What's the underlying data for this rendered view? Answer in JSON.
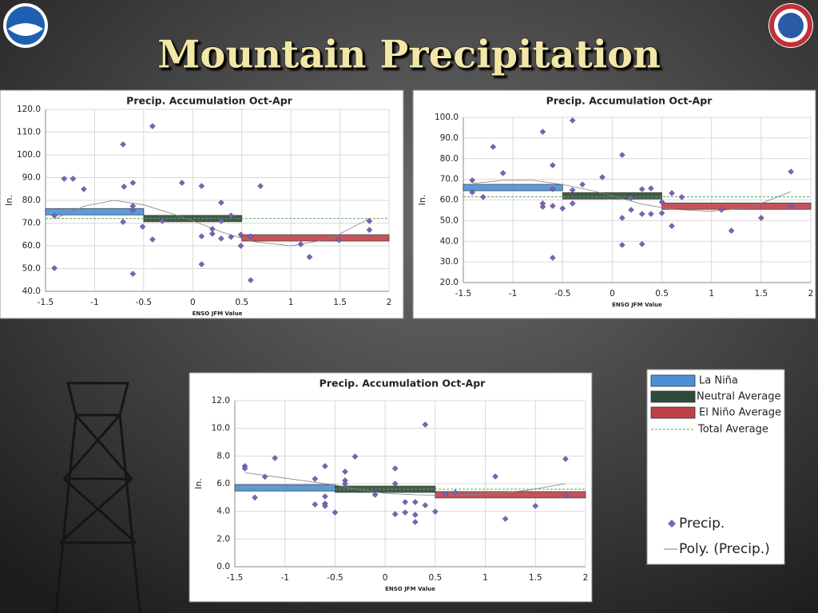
{
  "title": "Mountain Precipitation",
  "legend": {
    "items": [
      {
        "name": "La Niña",
        "color": "#4a90d9"
      },
      {
        "name": "Neutral Average",
        "color": "#2e4a38"
      },
      {
        "name": "El Niño Average",
        "color": "#c0404a"
      },
      {
        "name": "Total Average",
        "color": "#55aa55"
      },
      {
        "name": "Precip.",
        "color": "#7a64b4"
      },
      {
        "name": "Poly. (Precip.)",
        "color": "#808080"
      }
    ]
  },
  "chart_data": [
    {
      "type": "scatter",
      "title": "Precip. Accumulation Oct-Apr",
      "y_label": "In.",
      "x_label": "ENSO JFM Value",
      "grid": true,
      "xlim": [
        -1.5,
        2
      ],
      "xticks": [
        -1.5,
        -1,
        -0.5,
        0,
        0.5,
        1,
        1.5,
        2
      ],
      "ylim": [
        40,
        120
      ],
      "yticks": [
        {
          "value": 40,
          "label": "40.0"
        },
        {
          "value": 50,
          "label": "50.0"
        },
        {
          "value": 60,
          "label": "60.0"
        },
        {
          "value": 70,
          "label": "70.0"
        },
        {
          "value": 80,
          "label": "80.0"
        },
        {
          "value": 90,
          "label": "90.0"
        },
        {
          "value": 100,
          "label": "100.0"
        },
        {
          "value": 110,
          "label": "110.0"
        },
        {
          "value": 120,
          "label": "120.0"
        }
      ],
      "x": [
        -1.41,
        -1.41,
        -1.31,
        -1.22,
        -1.11,
        -0.71,
        -0.7,
        -0.71,
        -0.61,
        -0.61,
        -0.61,
        -0.61,
        -0.51,
        -0.41,
        -0.41,
        -0.31,
        -0.11,
        0.09,
        0.09,
        0.09,
        0.2,
        0.2,
        0.29,
        0.29,
        0.29,
        0.39,
        0.39,
        0.49,
        0.49,
        0.59,
        0.59,
        0.69,
        1.1,
        1.19,
        1.49,
        1.8,
        1.8
      ],
      "values": [
        73.3,
        50.2,
        89.5,
        89.5,
        84.9,
        104.6,
        86.0,
        70.5,
        87.7,
        77.5,
        75.8,
        47.7,
        68.4,
        112.6,
        62.8,
        70.9,
        87.7,
        86.3,
        64.2,
        51.9,
        67.4,
        65.3,
        79.0,
        70.9,
        63.2,
        73.3,
        63.9,
        64.9,
        60.0,
        64.2,
        44.9,
        86.3,
        60.7,
        55.1,
        62.5,
        70.9,
        67.0
      ],
      "averages": [
        {
          "x": [
            -1.5,
            -0.5
          ],
          "value": 75
        },
        {
          "x": [
            -0.5,
            0.5
          ],
          "value": 72
        },
        {
          "x": [
            0.5,
            2
          ],
          "value": 63.5
        }
      ],
      "total_average": 72,
      "trend": {
        "x": [
          -1.4,
          -1.1,
          -0.8,
          -0.5,
          -0.2,
          0,
          0.3,
          0.6,
          1.0,
          1.4,
          1.8
        ],
        "values": [
          72,
          77.5,
          80,
          78,
          74,
          71,
          66,
          62,
          60,
          63,
          72
        ]
      }
    },
    {
      "type": "scatter",
      "title": "Precip. Accumulation Oct-Apr",
      "y_label": "In.",
      "x_label": "ENSO JFM Value",
      "grid": true,
      "xlim": [
        -1.5,
        2
      ],
      "xticks": [
        -1.5,
        -1,
        -0.5,
        0,
        0.5,
        1,
        1.5,
        2
      ],
      "ylim": [
        20,
        100
      ],
      "yticks": [
        {
          "value": 20,
          "label": "20.0"
        },
        {
          "value": 30,
          "label": "30.0"
        },
        {
          "value": 40,
          "label": "40.0"
        },
        {
          "value": 50,
          "label": "50.0"
        },
        {
          "value": 60,
          "label": "60.0"
        },
        {
          "value": 70,
          "label": "70.0"
        },
        {
          "value": 80,
          "label": "80.0"
        },
        {
          "value": 90,
          "label": "90.0"
        },
        {
          "value": 100,
          "label": "100.0"
        }
      ],
      "x": [
        -1.41,
        -1.41,
        -1.3,
        -1.2,
        -1.1,
        -0.7,
        -0.7,
        -0.7,
        -0.6,
        -0.6,
        -0.6,
        -0.6,
        -0.5,
        -0.4,
        -0.4,
        -0.4,
        -0.3,
        -0.1,
        0.1,
        0.1,
        0.1,
        0.19,
        0.19,
        0.3,
        0.3,
        0.3,
        0.39,
        0.39,
        0.5,
        0.5,
        0.6,
        0.6,
        0.7,
        1.1,
        1.2,
        1.5,
        1.8,
        1.8
      ],
      "values": [
        69.5,
        63.7,
        61.4,
        85.7,
        73.0,
        93.0,
        58.3,
        56.7,
        76.8,
        65.2,
        57.1,
        32.0,
        55.9,
        98.5,
        64.8,
        58.3,
        67.5,
        71.0,
        81.8,
        51.3,
        38.2,
        61.0,
        55.2,
        65.2,
        53.2,
        38.6,
        65.6,
        53.2,
        59.0,
        53.6,
        63.3,
        47.4,
        61.4,
        55.2,
        45.1,
        51.3,
        73.7,
        56.7
      ],
      "averages": [
        {
          "x": [
            -1.5,
            -0.5
          ],
          "value": 66
        },
        {
          "x": [
            -0.5,
            0.5
          ],
          "value": 62
        },
        {
          "x": [
            0.5,
            2
          ],
          "value": 57
        }
      ],
      "total_average": 61.5,
      "trend": {
        "x": [
          -1.4,
          -1.1,
          -0.8,
          -0.5,
          -0.2,
          0,
          0.3,
          0.6,
          1.0,
          1.4,
          1.8
        ],
        "values": [
          68,
          69.5,
          69.5,
          67.5,
          64.5,
          62,
          58,
          55.5,
          54.5,
          56.5,
          64
        ]
      }
    },
    {
      "type": "scatter",
      "title": "Precip. Accumulation Oct-Apr",
      "y_label": "In.",
      "x_label": "ENSO JFM Value",
      "grid": true,
      "xlim": [
        -1.5,
        2
      ],
      "xticks": [
        -1.5,
        -1,
        -0.5,
        0,
        0.5,
        1,
        1.5,
        2
      ],
      "ylim": [
        0,
        12
      ],
      "yticks": [
        {
          "value": 0,
          "label": "0.0"
        },
        {
          "value": 2,
          "label": "2.0"
        },
        {
          "value": 4,
          "label": "4.0"
        },
        {
          "value": 6,
          "label": "6.0"
        },
        {
          "value": 8,
          "label": "8.0"
        },
        {
          "value": 10,
          "label": "10.0"
        },
        {
          "value": 12,
          "label": "12.0"
        }
      ],
      "x": [
        -1.4,
        -1.4,
        -1.3,
        -1.2,
        -1.1,
        -0.7,
        -0.7,
        -0.6,
        -0.6,
        -0.6,
        -0.6,
        -0.5,
        -0.4,
        -0.4,
        -0.4,
        -0.3,
        -0.1,
        0.1,
        0.1,
        0.1,
        0.2,
        0.2,
        0.3,
        0.3,
        0.3,
        0.4,
        0.4,
        0.5,
        0.6,
        0.7,
        1.1,
        1.2,
        1.5,
        1.8,
        1.8
      ],
      "values": [
        7.27,
        7.1,
        5.0,
        6.5,
        7.85,
        6.35,
        4.5,
        7.27,
        5.08,
        4.56,
        4.39,
        3.92,
        6.87,
        6.23,
        6.0,
        7.96,
        5.2,
        7.1,
        6.0,
        3.8,
        4.67,
        3.92,
        4.67,
        3.75,
        3.23,
        10.27,
        4.44,
        3.98,
        5.25,
        5.37,
        6.52,
        3.46,
        4.39,
        7.79,
        5.14
      ],
      "averages": [
        {
          "x": [
            -1.5,
            -0.5
          ],
          "value": 5.7
        },
        {
          "x": [
            -0.5,
            0.5
          ],
          "value": 5.6
        },
        {
          "x": [
            0.5,
            2
          ],
          "value": 5.2
        }
      ],
      "total_average": 5.6,
      "trend": {
        "x": [
          -1.4,
          -1.1,
          -0.8,
          -0.5,
          -0.2,
          0,
          0.3,
          0.6,
          1.0,
          1.4,
          1.8
        ],
        "values": [
          6.8,
          6.5,
          6.2,
          5.9,
          5.5,
          5.3,
          5.2,
          5.15,
          5.25,
          5.5,
          6.0
        ]
      }
    }
  ]
}
